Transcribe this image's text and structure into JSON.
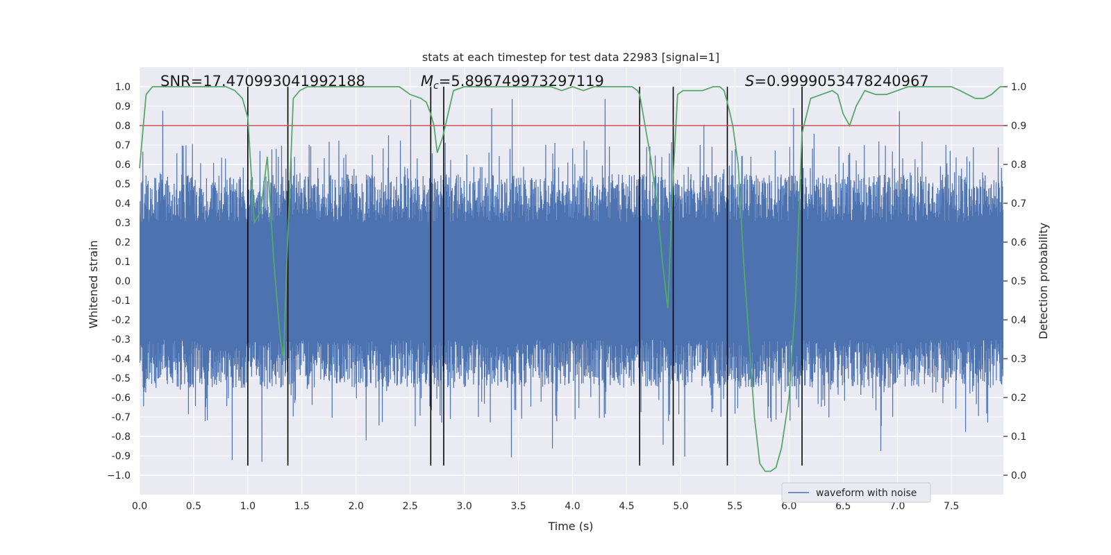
{
  "chart_data": {
    "type": "line",
    "title": "stats at each timestep for test data 22983 [signal=1]",
    "xlabel": "Time (s)",
    "ylabel": "Whitened strain",
    "y2label": "Detection probability",
    "xlim": [
      0.0,
      7.98
    ],
    "ylim": [
      -1.1,
      1.1
    ],
    "y2lim": [
      -0.05,
      1.05
    ],
    "xticks": [
      "0.0",
      "0.5",
      "1.0",
      "1.5",
      "2.0",
      "2.5",
      "3.0",
      "3.5",
      "4.0",
      "4.5",
      "5.0",
      "5.5",
      "6.0",
      "6.5",
      "7.0",
      "7.5"
    ],
    "yticks": [
      "1.0",
      "0.9",
      "0.8",
      "0.7",
      "0.6",
      "0.5",
      "0.4",
      "0.3",
      "0.2",
      "0.1",
      "0.0",
      "-0.1",
      "-0.2",
      "-0.3",
      "-0.4",
      "-0.5",
      "-0.6",
      "-0.7",
      "-0.8",
      "-0.9",
      "−1.0"
    ],
    "y2ticks": [
      "1.0",
      "0.9",
      "0.8",
      "0.7",
      "0.6",
      "0.5",
      "0.4",
      "0.3",
      "0.2",
      "0.1",
      "0.0"
    ],
    "annotations": {
      "snr": "SNR=17.470993041992188",
      "mc_symbol": "M",
      "mc_sub": "c",
      "mc_value": "=5.896749973297119",
      "s_symbol": "S",
      "s_value": "=0.9999053478240967"
    },
    "threshold": {
      "y2": 0.9,
      "color": "#c44e52"
    },
    "vlines_x": [
      1.0,
      1.37,
      2.69,
      2.81,
      4.62,
      4.93,
      5.43,
      6.12
    ],
    "vline_y_range": [
      -0.95,
      1.0
    ],
    "waveform": {
      "name": "waveform with noise",
      "color": "#4c72b0",
      "typical_amplitude": 0.55,
      "peak_amplitude": 0.95
    },
    "probability_series": {
      "name": "detection probability",
      "color": "#55a868",
      "x": [
        0.0,
        0.06,
        0.12,
        0.2,
        0.3,
        0.4,
        0.5,
        0.6,
        0.7,
        0.8,
        0.88,
        0.95,
        1.0,
        1.06,
        1.12,
        1.18,
        1.24,
        1.3,
        1.33,
        1.37,
        1.42,
        1.48,
        1.55,
        1.65,
        1.8,
        2.0,
        2.2,
        2.4,
        2.5,
        2.6,
        2.65,
        2.69,
        2.72,
        2.75,
        2.8,
        2.85,
        2.9,
        3.0,
        3.2,
        3.4,
        3.6,
        3.8,
        3.9,
        4.0,
        4.1,
        4.2,
        4.3,
        4.4,
        4.5,
        4.55,
        4.6,
        4.62,
        4.67,
        4.72,
        4.78,
        4.83,
        4.88,
        4.93,
        4.97,
        5.02,
        5.08,
        5.15,
        5.2,
        5.3,
        5.36,
        5.4,
        5.43,
        5.48,
        5.53,
        5.58,
        5.63,
        5.68,
        5.73,
        5.78,
        5.83,
        5.88,
        5.93,
        6.0,
        6.06,
        6.12,
        6.2,
        6.3,
        6.4,
        6.45,
        6.5,
        6.56,
        6.62,
        6.7,
        6.8,
        6.9,
        7.0,
        7.1,
        7.2,
        7.3,
        7.4,
        7.5,
        7.58,
        7.65,
        7.72,
        7.8,
        7.87,
        7.95,
        7.98
      ],
      "y": [
        0.79,
        0.98,
        1.0,
        1.0,
        1.0,
        1.0,
        1.0,
        1.0,
        1.0,
        1.0,
        0.99,
        0.97,
        0.92,
        0.65,
        0.68,
        0.82,
        0.55,
        0.35,
        0.3,
        0.62,
        0.97,
        0.99,
        1.0,
        1.0,
        1.0,
        1.0,
        1.0,
        1.0,
        0.98,
        0.97,
        0.96,
        0.93,
        0.9,
        0.83,
        0.87,
        0.93,
        0.99,
        1.0,
        1.0,
        1.0,
        1.0,
        1.0,
        0.99,
        1.0,
        0.99,
        1.0,
        1.0,
        1.0,
        1.0,
        1.0,
        0.99,
        0.98,
        0.9,
        0.82,
        0.7,
        0.55,
        0.43,
        0.77,
        0.98,
        0.99,
        0.99,
        0.99,
        0.99,
        1.0,
        1.0,
        0.99,
        0.96,
        0.9,
        0.8,
        0.55,
        0.35,
        0.15,
        0.03,
        0.01,
        0.01,
        0.02,
        0.07,
        0.2,
        0.45,
        0.88,
        0.97,
        0.98,
        0.99,
        0.98,
        0.93,
        0.9,
        0.95,
        0.99,
        0.98,
        0.98,
        0.99,
        1.0,
        1.0,
        1.0,
        1.0,
        1.0,
        0.99,
        0.98,
        0.97,
        0.97,
        0.98,
        1.0,
        1.0
      ]
    },
    "legend": {
      "label": "waveform with noise",
      "position": "bottom-right"
    },
    "colors": {
      "background": "#eaeaf2",
      "grid": "#ffffff",
      "vline": "#000000"
    }
  }
}
